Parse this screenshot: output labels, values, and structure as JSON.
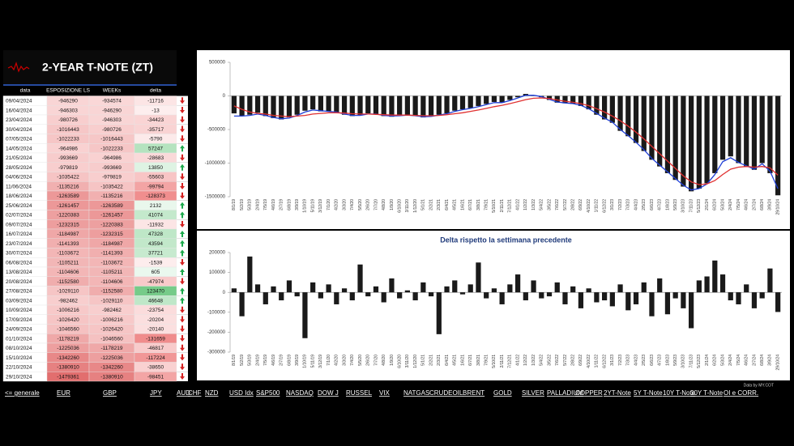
{
  "header": {
    "title": "2-YEAR T-NOTE (ZT)"
  },
  "table": {
    "columns": [
      "data",
      "ESPOSIZIONE LS",
      "WEEKs",
      "delta"
    ],
    "rows": [
      [
        "09/04/2024",
        -946290,
        -934574,
        -11716
      ],
      [
        "16/04/2024",
        -946303,
        -946290,
        -13
      ],
      [
        "23/04/2024",
        -980726,
        -946303,
        -34423
      ],
      [
        "30/04/2024",
        -1016443,
        -980726,
        -35717
      ],
      [
        "07/05/2024",
        -1022233,
        -1016443,
        -5790
      ],
      [
        "14/05/2024",
        -964986,
        -1022233,
        57247
      ],
      [
        "21/05/2024",
        -993669,
        -964986,
        -28683
      ],
      [
        "28/05/2024",
        -979819,
        -993669,
        13850
      ],
      [
        "04/06/2024",
        -1035422,
        -979819,
        -55603
      ],
      [
        "11/06/2024",
        -1135216,
        -1035422,
        -99794
      ],
      [
        "18/06/2024",
        -1263589,
        -1135216,
        -128373
      ],
      [
        "25/06/2024",
        -1261457,
        -1263589,
        2132
      ],
      [
        "02/07/2024",
        -1220383,
        -1261457,
        41074
      ],
      [
        "09/07/2024",
        -1232315,
        -1220383,
        -11932
      ],
      [
        "16/07/2024",
        -1184987,
        -1232315,
        47328
      ],
      [
        "23/07/2024",
        -1141393,
        -1184987,
        43594
      ],
      [
        "30/07/2024",
        -1103672,
        -1141393,
        37721
      ],
      [
        "06/08/2024",
        -1105211,
        -1103672,
        -1539
      ],
      [
        "13/08/2024",
        -1104606,
        -1105211,
        605
      ],
      [
        "20/08/2024",
        -1152580,
        -1104606,
        -47974
      ],
      [
        "27/08/2024",
        -1029110,
        -1152580,
        123470
      ],
      [
        "03/09/2024",
        -982462,
        -1029110,
        46648
      ],
      [
        "10/09/2024",
        -1006216,
        -982462,
        -23754
      ],
      [
        "17/09/2024",
        -1026420,
        -1006216,
        -20204
      ],
      [
        "24/09/2024",
        -1046560,
        -1026420,
        -20140
      ],
      [
        "01/10/2024",
        -1178219,
        -1046560,
        -131659
      ],
      [
        "08/10/2024",
        -1225036,
        -1178219,
        -46817
      ],
      [
        "15/10/2024",
        -1342260,
        -1225036,
        -117224
      ],
      [
        "22/10/2024",
        -1380910,
        -1342260,
        -38650
      ],
      [
        "29/10/2024",
        -1479361,
        -1380910,
        -98451
      ]
    ]
  },
  "chart_data": [
    {
      "type": "bar",
      "categories": [
        "8/1/19",
        "5/2/19",
        "5/3/19",
        "2/4/19",
        "7/5/19",
        "4/6/19",
        "2/7/19",
        "6/8/19",
        "3/9/19",
        "1/10/19",
        "5/11/19",
        "3/12/19",
        "7/1/20",
        "4/2/20",
        "3/3/20",
        "7/4/20",
        "5/5/20",
        "2/6/20",
        "7/7/20",
        "4/8/20",
        "1/9/20",
        "6/10/20",
        "3/11/20",
        "1/12/20",
        "5/1/21",
        "2/2/21",
        "2/3/21",
        "6/4/21",
        "4/5/21",
        "1/6/21",
        "6/7/21",
        "3/8/21",
        "7/9/21",
        "5/10/21",
        "2/11/21",
        "7/12/21",
        "4/1/22",
        "1/2/22",
        "1/3/22",
        "5/4/22",
        "3/5/22",
        "7/6/22",
        "5/7/22",
        "2/8/22",
        "6/9/22",
        "4/10/22",
        "1/11/22",
        "6/12/22",
        "3/1/23",
        "7/2/23",
        "7/3/23",
        "4/4/23",
        "2/5/23",
        "6/6/23",
        "4/7/23",
        "1/8/23",
        "5/9/23",
        "3/10/23",
        "7/11/23",
        "5/12/23",
        "2/1/24",
        "6/2/24",
        "5/3/24",
        "2/4/24",
        "7/5/24",
        "4/6/24",
        "2/7/24",
        "6/8/24",
        "3/9/24",
        "29/10/24"
      ],
      "series": [
        {
          "type": "bar",
          "color": "#1a1a1a",
          "values": [
            -260000,
            -300000,
            -280000,
            -250000,
            -300000,
            -330000,
            -350000,
            -320000,
            -280000,
            -220000,
            -200000,
            -230000,
            -230000,
            -250000,
            -280000,
            -300000,
            -290000,
            -260000,
            -270000,
            -300000,
            -310000,
            -290000,
            -280000,
            -300000,
            -320000,
            -300000,
            -280000,
            -260000,
            -220000,
            -200000,
            -180000,
            -150000,
            -120000,
            -90000,
            -100000,
            -60000,
            -20000,
            30000,
            10000,
            -20000,
            -60000,
            -100000,
            -110000,
            -120000,
            -150000,
            -200000,
            -280000,
            -350000,
            -400000,
            -520000,
            -600000,
            -700000,
            -820000,
            -950000,
            -1050000,
            -1150000,
            -1250000,
            -1350000,
            -1420000,
            -1380000,
            -1300000,
            -1150000,
            -950000,
            -900000,
            -1000000,
            -1050000,
            -1100000,
            -1000000,
            -1150000,
            -1479361
          ]
        },
        {
          "type": "line",
          "color": "#1f3fd6",
          "values": [
            -300000,
            -300000,
            -290000,
            -270000,
            -290000,
            -320000,
            -340000,
            -330000,
            -290000,
            -240000,
            -210000,
            -220000,
            -230000,
            -240000,
            -270000,
            -290000,
            -290000,
            -270000,
            -270000,
            -290000,
            -300000,
            -295000,
            -285000,
            -295000,
            -310000,
            -305000,
            -285000,
            -265000,
            -230000,
            -205000,
            -185000,
            -160000,
            -130000,
            -100000,
            -100000,
            -70000,
            -30000,
            10000,
            10000,
            -10000,
            -50000,
            -90000,
            -105000,
            -115000,
            -140000,
            -190000,
            -260000,
            -330000,
            -390000,
            -500000,
            -590000,
            -690000,
            -800000,
            -930000,
            -1030000,
            -1130000,
            -1230000,
            -1330000,
            -1400000,
            -1380000,
            -1310000,
            -1170000,
            -980000,
            -920000,
            -990000,
            -1040000,
            -1090000,
            -1010000,
            -1120000,
            -1380000
          ]
        },
        {
          "type": "line",
          "color": "#e03030",
          "values": [
            -150000,
            -200000,
            -240000,
            -260000,
            -270000,
            -290000,
            -300000,
            -310000,
            -300000,
            -290000,
            -270000,
            -260000,
            -250000,
            -250000,
            -255000,
            -265000,
            -270000,
            -270000,
            -275000,
            -280000,
            -285000,
            -285000,
            -285000,
            -290000,
            -295000,
            -295000,
            -290000,
            -280000,
            -265000,
            -250000,
            -230000,
            -210000,
            -185000,
            -160000,
            -140000,
            -115000,
            -85000,
            -55000,
            -35000,
            -30000,
            -40000,
            -60000,
            -80000,
            -95000,
            -115000,
            -145000,
            -190000,
            -240000,
            -300000,
            -370000,
            -450000,
            -540000,
            -640000,
            -750000,
            -860000,
            -970000,
            -1080000,
            -1190000,
            -1280000,
            -1320000,
            -1310000,
            -1260000,
            -1170000,
            -1090000,
            -1060000,
            -1050000,
            -1060000,
            -1050000,
            -1070000,
            -1180000
          ]
        }
      ],
      "ylim": [
        -1500000,
        500000
      ],
      "yticks": [
        500000,
        0,
        -500000,
        -1000000,
        -1500000
      ]
    },
    {
      "type": "bar",
      "title": "Delta rispetto la settimana precedente",
      "categories": [
        "8/1/19",
        "5/2/19",
        "5/3/19",
        "2/4/19",
        "7/5/19",
        "4/6/19",
        "2/7/19",
        "6/8/19",
        "3/9/19",
        "1/10/19",
        "5/11/19",
        "3/12/19",
        "7/1/20",
        "4/2/20",
        "3/3/20",
        "7/4/20",
        "5/5/20",
        "2/6/20",
        "7/7/20",
        "4/8/20",
        "1/9/20",
        "6/10/20",
        "3/11/20",
        "1/12/20",
        "5/1/21",
        "2/2/21",
        "2/3/21",
        "6/4/21",
        "4/5/21",
        "1/6/21",
        "6/7/21",
        "3/8/21",
        "7/9/21",
        "5/10/21",
        "2/11/21",
        "7/12/21",
        "4/1/22",
        "1/2/22",
        "1/3/22",
        "5/4/22",
        "3/5/22",
        "7/6/22",
        "5/7/22",
        "2/8/22",
        "6/9/22",
        "4/10/22",
        "1/11/22",
        "6/12/22",
        "3/1/23",
        "7/2/23",
        "7/3/23",
        "4/4/23",
        "2/5/23",
        "6/6/23",
        "4/7/23",
        "1/8/23",
        "5/9/23",
        "3/10/23",
        "7/11/23",
        "5/12/23",
        "2/1/24",
        "6/2/24",
        "5/3/24",
        "2/4/24",
        "7/5/24",
        "4/6/24",
        "2/7/24",
        "6/8/24",
        "3/9/24",
        "29/10/24"
      ],
      "series": [
        {
          "type": "bar",
          "color": "#1a1a1a",
          "values": [
            20000,
            -120000,
            180000,
            40000,
            -60000,
            30000,
            -40000,
            60000,
            -20000,
            -230000,
            50000,
            -30000,
            40000,
            -60000,
            20000,
            -40000,
            140000,
            -20000,
            30000,
            -50000,
            70000,
            -30000,
            10000,
            -40000,
            50000,
            -20000,
            -210000,
            30000,
            60000,
            -10000,
            40000,
            150000,
            -30000,
            20000,
            -60000,
            40000,
            90000,
            -40000,
            60000,
            -30000,
            -20000,
            50000,
            -60000,
            30000,
            -80000,
            20000,
            -50000,
            -40000,
            -70000,
            40000,
            -90000,
            -60000,
            50000,
            -120000,
            70000,
            -110000,
            -30000,
            -80000,
            -180000,
            60000,
            80000,
            160000,
            90000,
            -40000,
            -60000,
            40000,
            -80000,
            -30000,
            120000,
            -98451
          ]
        }
      ],
      "ylim": [
        -300000,
        200000
      ],
      "yticks": [
        200000,
        100000,
        0,
        -100000,
        -200000,
        -300000
      ]
    }
  ],
  "nav": [
    "<= generale",
    "EUR",
    "GBP",
    "JPY",
    "AUD",
    "CHF",
    "NZD",
    "USD Idx",
    "S&P500",
    "NASDAQ",
    "DOW J",
    "RUSSEL",
    "VIX",
    "NATGAS",
    "CRUDEOIL",
    "BRENT",
    "GOLD",
    "SILVER",
    "PALLADIUM",
    "COPPER",
    "2YT-Note",
    "5Y T-Note",
    "10Y T-Note",
    "30Y T-Note",
    "OI e CORR."
  ],
  "footer": "Data by MY.COT"
}
